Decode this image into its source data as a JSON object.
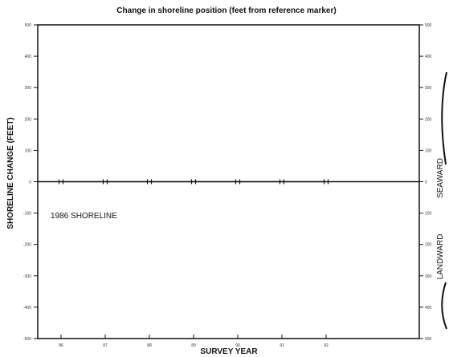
{
  "chart_data": {
    "type": "line",
    "title": "Change in shoreline position (feet from reference marker)",
    "xlabel": "SURVEY YEAR",
    "ylabel": "SHORELINE CHANGE (FEET)",
    "x_tick_labels": [
      "86",
      "87",
      "88",
      "89",
      "90",
      "91",
      "92"
    ],
    "y_left_tick_labels": [
      "500",
      "400",
      "300",
      "200",
      "100",
      "0",
      "-100",
      "-200",
      "-300",
      "-400",
      "-500"
    ],
    "y_right_tick_labels": [
      "500",
      "400",
      "300",
      "200",
      "100",
      "0",
      "100",
      "200",
      "300",
      "400",
      "500"
    ],
    "ylim": [
      -500,
      500
    ],
    "grid": false,
    "annotation": "1986 SHORELINE",
    "right_labels": {
      "upper": "SEAWARD",
      "lower": "LANDWARD"
    },
    "series": [
      {
        "x": [
          86,
          87,
          88,
          89,
          90,
          91,
          92
        ],
        "values": [
          0,
          0,
          0,
          0,
          0,
          0,
          0
        ]
      }
    ]
  }
}
